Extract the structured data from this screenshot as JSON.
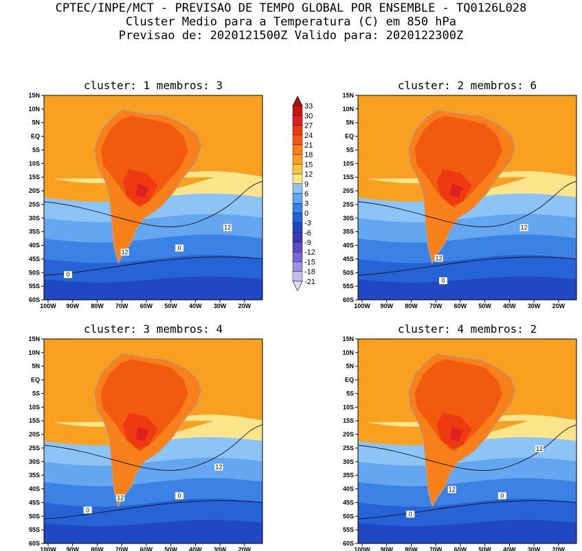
{
  "header": {
    "line1": "CPTEC/INPE/MCT - PREVISAO DE TEMPO GLOBAL POR ENSEMBLE - TQ0126L028",
    "line2": "Cluster Medio para a Temperatura (C) em 850 hPa",
    "line3": "Previsao de: 2020121500Z   Valido para: 2020122300Z"
  },
  "lat_ticks": [
    "15N",
    "10N",
    "5N",
    "EQ",
    "5S",
    "10S",
    "15S",
    "20S",
    "25S",
    "30S",
    "35S",
    "40S",
    "45S",
    "50S",
    "55S",
    "60S"
  ],
  "lon_ticks": [
    "100W",
    "90W",
    "80W",
    "70W",
    "60W",
    "50W",
    "40W",
    "30W",
    "20W"
  ],
  "colorbar": {
    "labels": [
      "33",
      "30",
      "27",
      "24",
      "21",
      "18",
      "15",
      "12",
      "9",
      "6",
      "3",
      "0",
      "-3",
      "-6",
      "-9",
      "-12",
      "-15",
      "-18",
      "-21"
    ],
    "colors": [
      "#a51010",
      "#c81616",
      "#e02020",
      "#ee3a10",
      "#f25a10",
      "#f7801a",
      "#faa020",
      "#fbc640",
      "#fce48a",
      "#8cc4f8",
      "#64a6f0",
      "#3c82e4",
      "#2664d6",
      "#1f48c2",
      "#3a3cb4",
      "#5a4cc2",
      "#7a68d2",
      "#a090e2",
      "#c8bcf0",
      "#e4dcf8"
    ]
  },
  "clusters": [
    {
      "title": "cluster: 1   membros: 3",
      "contour_labels": [
        "12",
        "12",
        "0",
        "0"
      ]
    },
    {
      "title": "cluster: 2   membros: 6",
      "contour_labels": [
        "12",
        "12",
        "0"
      ]
    },
    {
      "title": "cluster: 3   membros: 4",
      "contour_labels": [
        "12",
        "12",
        "0",
        "0"
      ]
    },
    {
      "title": "cluster: 4   membros: 2",
      "contour_labels": [
        "12",
        "12",
        "0",
        "0"
      ]
    }
  ]
}
